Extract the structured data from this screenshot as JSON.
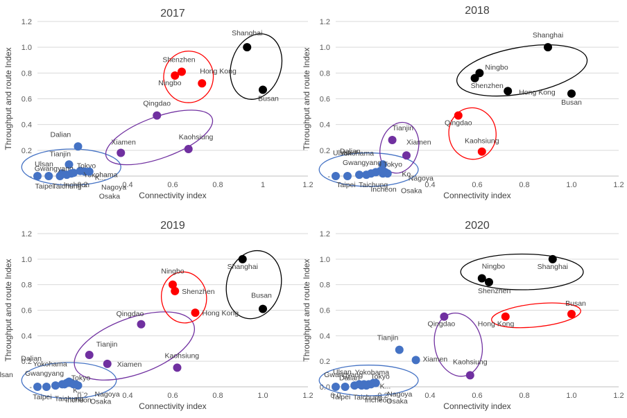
{
  "colors": {
    "blue": "#4472c4",
    "purple": "#7030a0",
    "red": "#ff0000",
    "black": "#000000"
  },
  "chart_data": [
    {
      "type": "scatter",
      "title": "2017",
      "xlabel": "Connectivity index",
      "ylabel": "Throughput and route Index",
      "xlim": [
        0,
        1.2
      ],
      "ylim": [
        0,
        1.2
      ],
      "x_ticks": [
        "0.2",
        "0.4",
        "0.6",
        "0.8",
        "1",
        "1.2"
      ],
      "y_ticks": [
        "-",
        "0.2",
        "0.4",
        "0.6",
        "0.8",
        "1.0",
        "1.2"
      ],
      "grid": true,
      "points": [
        {
          "label": "Shanghai",
          "x": 0.93,
          "y": 1.0,
          "group": "black"
        },
        {
          "label": "Busan",
          "x": 1.0,
          "y": 0.67,
          "group": "black"
        },
        {
          "label": "Shenzhen",
          "x": 0.64,
          "y": 0.81,
          "group": "red"
        },
        {
          "label": "Hong Kong",
          "x": 0.73,
          "y": 0.72,
          "group": "red"
        },
        {
          "label": "Ningbo",
          "x": 0.61,
          "y": 0.78,
          "group": "red"
        },
        {
          "label": "Qingdao",
          "x": 0.53,
          "y": 0.47,
          "group": "purple"
        },
        {
          "label": "Xiamen",
          "x": 0.37,
          "y": 0.18,
          "group": "purple"
        },
        {
          "label": "Kaohsiung",
          "x": 0.67,
          "y": 0.21,
          "group": "purple"
        },
        {
          "label": "Dalian",
          "x": 0.18,
          "y": 0.23,
          "group": "blue"
        },
        {
          "label": "Tianjin",
          "x": 0.14,
          "y": 0.09,
          "group": "blue"
        },
        {
          "label": "Tokyo",
          "x": 0.19,
          "y": 0.04,
          "group": "blue"
        },
        {
          "label": "Yokohama",
          "x": 0.21,
          "y": 0.035,
          "group": "blue"
        },
        {
          "label": "K...",
          "x": 0.23,
          "y": 0.035,
          "group": "blue"
        },
        {
          "label": "Ulsan",
          "x": 0.0,
          "y": 0.0,
          "group": "blue"
        },
        {
          "label": "Gwangyang",
          "x": 0.11,
          "y": 0.02,
          "group": "blue"
        },
        {
          "label": "Taipei",
          "x": 0.05,
          "y": 0.0,
          "group": "blue"
        },
        {
          "label": "Taichung",
          "x": 0.1,
          "y": 0.0,
          "group": "blue"
        },
        {
          "label": "Incheon",
          "x": 0.13,
          "y": 0.01,
          "group": "blue"
        },
        {
          "label": "Nagoya",
          "x": 0.16,
          "y": 0.025,
          "group": "blue"
        },
        {
          "label": "Osaka",
          "x": 0.15,
          "y": 0.02,
          "group": "blue"
        }
      ]
    },
    {
      "type": "scatter",
      "title": "2018",
      "xlabel": "Connectivity index",
      "ylabel": "Throughput and route Index",
      "xlim": [
        0,
        1.2
      ],
      "ylim": [
        0,
        1.2
      ],
      "x_ticks": [
        "0.4",
        "0.6",
        "0.8",
        "1.0",
        "1.2"
      ],
      "y_ticks": [
        "-",
        "0.2",
        "0.4",
        "0.6",
        "0.8",
        "1.0",
        "1.2"
      ],
      "grid": true,
      "points": [
        {
          "label": "Shanghai",
          "x": 0.9,
          "y": 1.0,
          "group": "black"
        },
        {
          "label": "Ningbo",
          "x": 0.61,
          "y": 0.8,
          "group": "black"
        },
        {
          "label": "Shenzhen",
          "x": 0.59,
          "y": 0.76,
          "group": "black"
        },
        {
          "label": "Hong Kong",
          "x": 0.73,
          "y": 0.66,
          "group": "black"
        },
        {
          "label": "Busan",
          "x": 1.0,
          "y": 0.64,
          "group": "black"
        },
        {
          "label": "Qingdao",
          "x": 0.52,
          "y": 0.47,
          "group": "red"
        },
        {
          "label": "Kaohsiung",
          "x": 0.62,
          "y": 0.19,
          "group": "red"
        },
        {
          "label": "Tianjin",
          "x": 0.24,
          "y": 0.28,
          "group": "purple"
        },
        {
          "label": "Xiamen",
          "x": 0.3,
          "y": 0.16,
          "group": "purple"
        },
        {
          "label": "Dalian",
          "x": 0.2,
          "y": 0.09,
          "group": "blue"
        },
        {
          "label": "Tokyo",
          "x": 0.19,
          "y": 0.04,
          "group": "blue"
        },
        {
          "label": "Ko...",
          "x": 0.21,
          "y": 0.03,
          "group": "blue"
        },
        {
          "label": "Yokohama",
          "x": 0.17,
          "y": 0.03,
          "group": "blue"
        },
        {
          "label": "Ulsan",
          "x": 0.0,
          "y": 0.0,
          "group": "blue"
        },
        {
          "label": "Gwangyang",
          "x": 0.1,
          "y": 0.01,
          "group": "blue"
        },
        {
          "label": "Taipei",
          "x": 0.05,
          "y": 0.0,
          "group": "blue"
        },
        {
          "label": "Taichung",
          "x": 0.13,
          "y": 0.01,
          "group": "blue"
        },
        {
          "label": "Incheon",
          "x": 0.15,
          "y": 0.02,
          "group": "blue"
        },
        {
          "label": "Nagoya",
          "x": 0.22,
          "y": 0.02,
          "group": "blue"
        },
        {
          "label": "Osaka",
          "x": 0.2,
          "y": 0.02,
          "group": "blue"
        }
      ]
    },
    {
      "type": "scatter",
      "title": "2019",
      "xlabel": "Connectivity index",
      "ylabel": "Throughput and route Index",
      "xlim": [
        0,
        1.2
      ],
      "ylim": [
        0,
        1.2
      ],
      "x_ticks": [
        "0.2",
        "0.4",
        "0.6",
        "0.8",
        "1.0",
        "1.2"
      ],
      "y_ticks": [
        "-",
        "0.2",
        "0.4",
        "0.6",
        "0.8",
        "1.0",
        "1.2"
      ],
      "grid": true,
      "points": [
        {
          "label": "Shanghai",
          "x": 0.91,
          "y": 1.0,
          "group": "black"
        },
        {
          "label": "Busan",
          "x": 1.0,
          "y": 0.61,
          "group": "black"
        },
        {
          "label": "Ningbo",
          "x": 0.6,
          "y": 0.8,
          "group": "red"
        },
        {
          "label": "Shenzhen",
          "x": 0.61,
          "y": 0.75,
          "group": "red"
        },
        {
          "label": "Hong Kong",
          "x": 0.7,
          "y": 0.58,
          "group": "red"
        },
        {
          "label": "Qingdao",
          "x": 0.46,
          "y": 0.49,
          "group": "purple"
        },
        {
          "label": "Tianjin",
          "x": 0.23,
          "y": 0.25,
          "group": "purple"
        },
        {
          "label": "Xiamen",
          "x": 0.31,
          "y": 0.18,
          "group": "purple"
        },
        {
          "label": "Kaohsiung",
          "x": 0.62,
          "y": 0.15,
          "group": "purple"
        },
        {
          "label": "Dalian",
          "x": 0.13,
          "y": 0.03,
          "group": "blue"
        },
        {
          "label": "Ulsan",
          "x": 0.0,
          "y": 0.0,
          "group": "blue"
        },
        {
          "label": "Yokohama",
          "x": 0.14,
          "y": 0.04,
          "group": "blue"
        },
        {
          "label": "Gwangyang",
          "x": 0.08,
          "y": 0.01,
          "group": "blue"
        },
        {
          "label": "Tokyo",
          "x": 0.15,
          "y": 0.03,
          "group": "blue"
        },
        {
          "label": "K...",
          "x": 0.17,
          "y": 0.02,
          "group": "blue"
        },
        {
          "label": "Taipei",
          "x": 0.04,
          "y": 0.0,
          "group": "blue"
        },
        {
          "label": "Taichung",
          "x": 0.11,
          "y": 0.02,
          "group": "blue"
        },
        {
          "label": "Incheon",
          "x": 0.12,
          "y": 0.02,
          "group": "blue"
        },
        {
          "label": "Nagoya",
          "x": 0.18,
          "y": 0.01,
          "group": "blue"
        },
        {
          "label": "Osaka",
          "x": 0.16,
          "y": 0.02,
          "group": "blue"
        }
      ]
    },
    {
      "type": "scatter",
      "title": "2020",
      "xlabel": "Connectivity index",
      "ylabel": "Throughput and route Index",
      "xlim": [
        0,
        1.2
      ],
      "ylim": [
        0,
        1.2
      ],
      "x_ticks": [
        "0.0",
        "0.2",
        "0.4",
        "0.6",
        "0.8",
        "1.0",
        "1.2"
      ],
      "y_ticks": [
        "0.0",
        "0.2",
        "0.4",
        "0.6",
        "0.8",
        "1.0",
        "1.2"
      ],
      "grid": true,
      "points": [
        {
          "label": "Shanghai",
          "x": 0.92,
          "y": 1.0,
          "group": "black"
        },
        {
          "label": "Ningbo",
          "x": 0.62,
          "y": 0.85,
          "group": "black"
        },
        {
          "label": "Shenzhen",
          "x": 0.65,
          "y": 0.82,
          "group": "black"
        },
        {
          "label": "Busan",
          "x": 1.0,
          "y": 0.57,
          "group": "red"
        },
        {
          "label": "Hong Kong",
          "x": 0.72,
          "y": 0.55,
          "group": "red"
        },
        {
          "label": "Qingdao",
          "x": 0.46,
          "y": 0.55,
          "group": "purple"
        },
        {
          "label": "Kaohsiung",
          "x": 0.57,
          "y": 0.09,
          "group": "purple"
        },
        {
          "label": "Tianjin",
          "x": 0.27,
          "y": 0.29,
          "group": "blue"
        },
        {
          "label": "Xiamen",
          "x": 0.34,
          "y": 0.21,
          "group": "blue"
        },
        {
          "label": "Yokohama",
          "x": 0.17,
          "y": 0.03,
          "group": "blue"
        },
        {
          "label": "Dalian",
          "x": 0.15,
          "y": 0.02,
          "group": "blue"
        },
        {
          "label": "Ulsan",
          "x": 0.0,
          "y": 0.0,
          "group": "blue"
        },
        {
          "label": "Gwangyang",
          "x": 0.08,
          "y": 0.01,
          "group": "blue"
        },
        {
          "label": "Tokyo",
          "x": 0.16,
          "y": 0.03,
          "group": "blue"
        },
        {
          "label": "K...",
          "x": 0.14,
          "y": 0.02,
          "group": "blue"
        },
        {
          "label": "Taipei",
          "x": 0.04,
          "y": 0.0,
          "group": "blue"
        },
        {
          "label": "Taichung",
          "x": 0.1,
          "y": 0.02,
          "group": "blue"
        },
        {
          "label": "Incheon",
          "x": 0.12,
          "y": 0.02,
          "group": "blue"
        },
        {
          "label": "Nagoya",
          "x": 0.13,
          "y": 0.01,
          "group": "blue"
        },
        {
          "label": "Osaka",
          "x": 0.11,
          "y": 0.01,
          "group": "blue"
        }
      ]
    }
  ]
}
